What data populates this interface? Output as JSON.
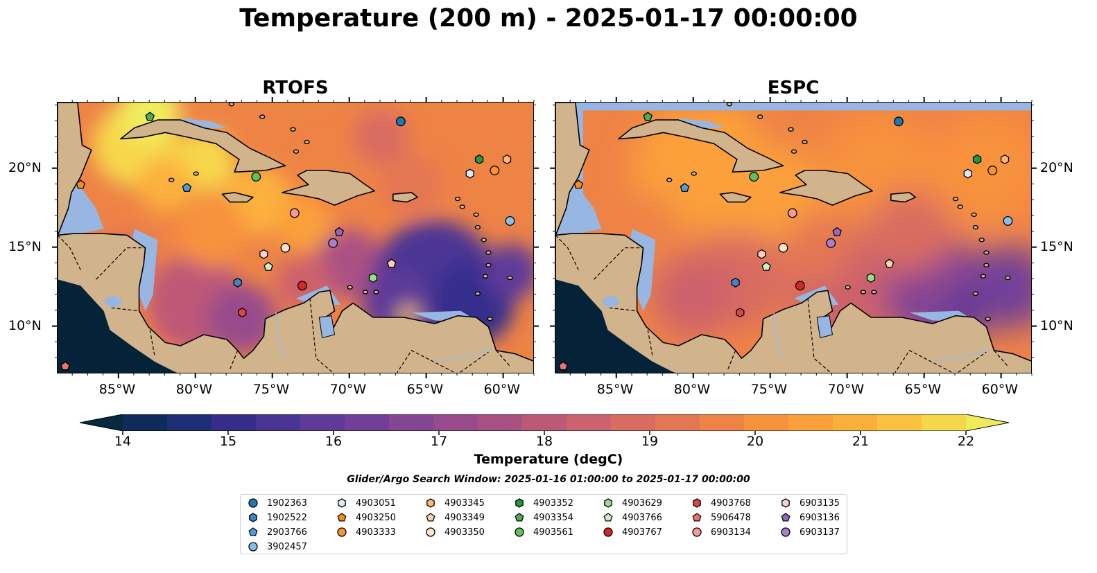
{
  "title": "Temperature (200 m) - 2025-01-17 00:00:00",
  "panels": [
    {
      "title": "RTOFS",
      "side": "left"
    },
    {
      "title": "ESPC",
      "side": "right"
    }
  ],
  "map": {
    "lon_range": [
      -89,
      -58
    ],
    "lat_range": [
      7,
      24.2
    ],
    "lon_ticks": [
      "85°W",
      "80°W",
      "75°W",
      "70°W",
      "65°W",
      "60°W"
    ],
    "lon_tick_values": [
      -85,
      -80,
      -75,
      -70,
      -65,
      -60
    ],
    "lat_ticks": [
      "20°N",
      "15°N",
      "10°N"
    ],
    "lat_tick_values": [
      20,
      15,
      10
    ],
    "colors": {
      "land": "#d2b48c",
      "shelf_water": "#97b6e1",
      "deep_cold": "#052338"
    }
  },
  "colorbar": {
    "label": "Temperature (degC)",
    "min": 14,
    "max": 22,
    "ticks": [
      "14",
      "15",
      "16",
      "17",
      "18",
      "19",
      "20",
      "21",
      "22"
    ],
    "colors": [
      "#052a40",
      "#102a5c",
      "#1e2f78",
      "#352d8c",
      "#4b3495",
      "#5e3a99",
      "#723f98",
      "#844593",
      "#974b8c",
      "#aa5183",
      "#bd5878",
      "#cc626c",
      "#d96c60",
      "#e47753",
      "#ee8346",
      "#f7923d",
      "#fba03a",
      "#fcb03c",
      "#fbc241",
      "#f6d74c",
      "#f0eb5b"
    ]
  },
  "search_window": "Glider/Argo Search Window: 2025-01-16 01:00:00 to 2025-01-17 00:00:00",
  "floats": [
    {
      "id": "1902363",
      "marker": "circle",
      "color": "#1f77b4",
      "lon": -66.7,
      "lat": 23.0
    },
    {
      "id": "1902522",
      "marker": "hexagon",
      "color": "#3d85c6",
      "lon": -77.3,
      "lat": 12.8
    },
    {
      "id": "2903766",
      "marker": "pentagon",
      "color": "#4f9de0",
      "lon": -80.6,
      "lat": 18.8
    },
    {
      "id": "3902457",
      "marker": "circle",
      "color": "#87bfed",
      "lon": -59.6,
      "lat": 16.7
    },
    {
      "id": "4903051",
      "marker": "hexagon",
      "color": "#d6eaf8",
      "lon": -62.2,
      "lat": 19.7
    },
    {
      "id": "4903250",
      "marker": "pentagon",
      "color": "#f58d1e",
      "lon": -87.5,
      "lat": 19.0
    },
    {
      "id": "4903333",
      "marker": "circle",
      "color": "#f7932e",
      "lon": -60.6,
      "lat": 19.9
    },
    {
      "id": "4903345",
      "marker": "hexagon",
      "color": "#fcb77c",
      "lon": -59.8,
      "lat": 20.6
    },
    {
      "id": "4903349",
      "marker": "pentagon",
      "color": "#fcd2a8",
      "lon": -67.3,
      "lat": 14.0
    },
    {
      "id": "4903350",
      "marker": "circle",
      "color": "#fde2c8",
      "lon": -74.2,
      "lat": 15.0
    },
    {
      "id": "4903352",
      "marker": "hexagon",
      "color": "#1f9c3a",
      "lon": -61.6,
      "lat": 20.6
    },
    {
      "id": "4903354",
      "marker": "pentagon",
      "color": "#4cae4c",
      "lon": -83.0,
      "lat": 23.3
    },
    {
      "id": "4903561",
      "marker": "circle",
      "color": "#5cc25c",
      "lon": -76.1,
      "lat": 19.5
    },
    {
      "id": "4903629",
      "marker": "hexagon",
      "color": "#98df8a",
      "lon": -68.5,
      "lat": 13.1
    },
    {
      "id": "4903766",
      "marker": "pentagon",
      "color": "#c8f0c0",
      "lon": -75.3,
      "lat": 13.8
    },
    {
      "id": "4903767",
      "marker": "circle",
      "color": "#d62728",
      "lon": -73.1,
      "lat": 12.6
    },
    {
      "id": "4903768",
      "marker": "hexagon",
      "color": "#e04545",
      "lon": -77.0,
      "lat": 10.9
    },
    {
      "id": "5906478",
      "marker": "pentagon",
      "color": "#f07070",
      "lon": -88.5,
      "lat": 7.5
    },
    {
      "id": "6903134",
      "marker": "circle",
      "color": "#f49a9a",
      "lon": -73.6,
      "lat": 17.2
    },
    {
      "id": "6903135",
      "marker": "hexagon",
      "color": "#fbd0d0",
      "lon": -75.6,
      "lat": 14.6
    },
    {
      "id": "6903136",
      "marker": "pentagon",
      "color": "#9467bd",
      "lon": -70.7,
      "lat": 16.0
    },
    {
      "id": "6903137",
      "marker": "circle",
      "color": "#a880d0",
      "lon": -71.1,
      "lat": 15.3
    }
  ]
}
